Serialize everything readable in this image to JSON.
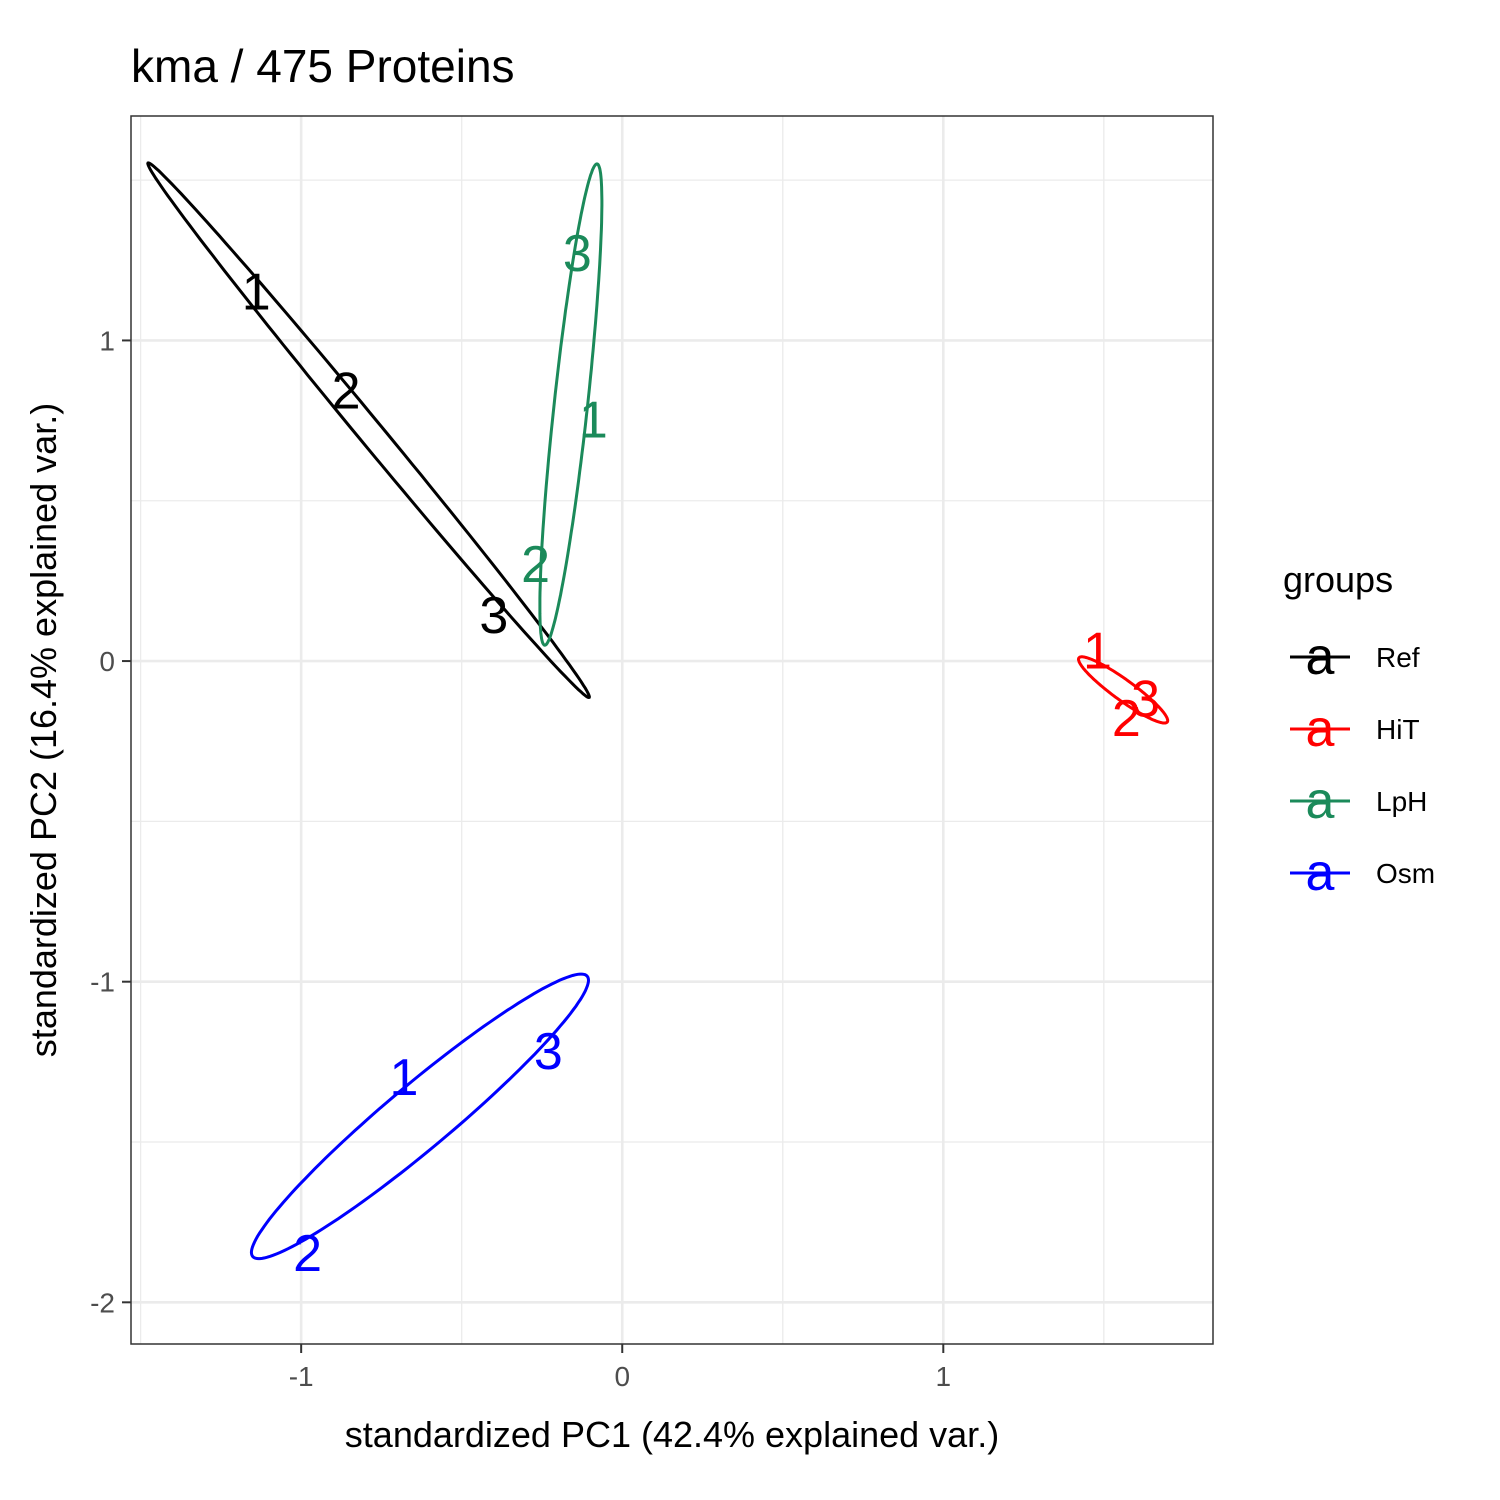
{
  "chart_data": {
    "type": "scatter",
    "title": "kma /  475  Proteins",
    "xlabel": "standardized PC1 (42.4% explained var.)",
    "ylabel": "standardized PC2 (16.4% explained var.)",
    "xlim": [
      -1.53,
      1.84
    ],
    "ylim": [
      -2.13,
      1.7
    ],
    "x_ticks": [
      {
        "value": -1,
        "label": "-1"
      },
      {
        "value": 0,
        "label": "0"
      },
      {
        "value": 1,
        "label": "1"
      }
    ],
    "y_ticks": [
      {
        "value": 1,
        "label": "1"
      },
      {
        "value": 0,
        "label": "0"
      },
      {
        "value": -1,
        "label": "-1"
      },
      {
        "value": -2,
        "label": "-2"
      }
    ],
    "x_minor": [
      -1.5,
      -0.5,
      0.5,
      1.5
    ],
    "y_minor": [
      1.5,
      0.5,
      -0.5,
      -1.5
    ],
    "grid": true,
    "legend": {
      "title": "groups",
      "position": "right",
      "key_glyph": "a",
      "entries": [
        {
          "name": "Ref",
          "color": "#000000"
        },
        {
          "name": "HiT",
          "color": "#ff0000"
        },
        {
          "name": "LpH",
          "color": "#1b8a5a"
        },
        {
          "name": "Osm",
          "color": "#0000ff"
        }
      ]
    },
    "series": [
      {
        "name": "Ref",
        "color": "#000000",
        "points": [
          {
            "label": "1",
            "x": -1.14,
            "y": 1.15
          },
          {
            "label": "2",
            "x": -0.86,
            "y": 0.84
          },
          {
            "label": "3",
            "x": -0.4,
            "y": 0.14
          }
        ],
        "ellipse": {
          "cx": -0.79,
          "cy": 0.72,
          "a": 1.08,
          "b": 0.038,
          "angle_deg": -50.5
        }
      },
      {
        "name": "HiT",
        "color": "#ff0000",
        "points": [
          {
            "label": "1",
            "x": 1.48,
            "y": 0.03
          },
          {
            "label": "2",
            "x": 1.57,
            "y": -0.18
          },
          {
            "label": "3",
            "x": 1.63,
            "y": -0.12
          }
        ],
        "ellipse": {
          "cx": 1.56,
          "cy": -0.09,
          "a": 0.17,
          "b": 0.032,
          "angle_deg": -36
        }
      },
      {
        "name": "LpH",
        "color": "#1b8a5a",
        "points": [
          {
            "label": "1",
            "x": -0.09,
            "y": 0.75
          },
          {
            "label": "2",
            "x": -0.27,
            "y": 0.3
          },
          {
            "label": "3",
            "x": -0.14,
            "y": 1.27
          }
        ],
        "ellipse": {
          "cx": -0.16,
          "cy": 0.8,
          "a": 0.755,
          "b": 0.052,
          "angle_deg": 83.8
        }
      },
      {
        "name": "Osm",
        "color": "#0000ff",
        "points": [
          {
            "label": "1",
            "x": -0.68,
            "y": -1.3
          },
          {
            "label": "2",
            "x": -0.98,
            "y": -1.85
          },
          {
            "label": "3",
            "x": -0.23,
            "y": -1.22
          }
        ],
        "ellipse": {
          "cx": -0.63,
          "cy": -1.42,
          "a": 0.68,
          "b": 0.1,
          "angle_deg": 40
        }
      }
    ]
  }
}
